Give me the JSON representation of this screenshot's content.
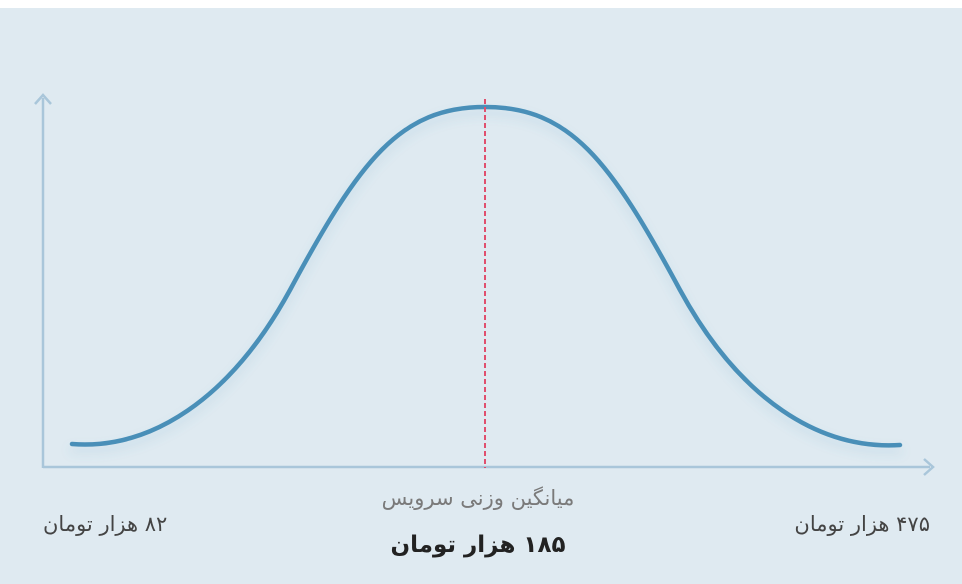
{
  "min_label": "۸۲ هزار تومان",
  "max_label": "۴۷۵ هزار تومان",
  "average_caption": "میانگین وزنی سرویس",
  "average_label": "۱۸۵ هزار تومان"
}
